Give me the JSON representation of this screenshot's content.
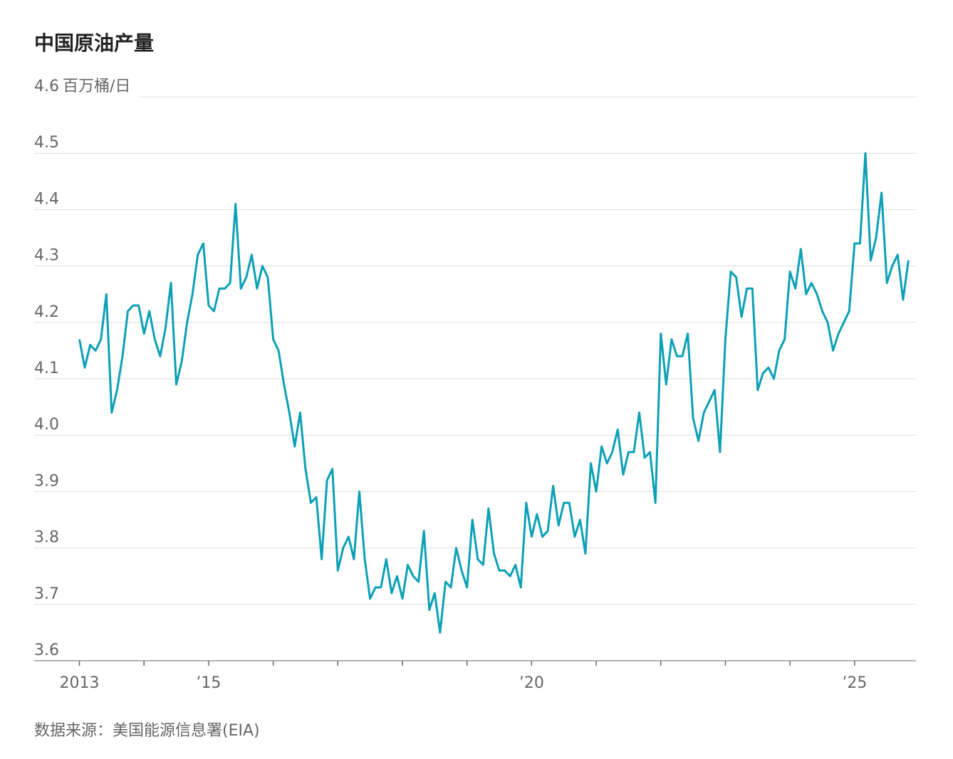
{
  "chart_data": {
    "type": "line",
    "title": "中国原油产量",
    "y_unit": "百万桶/日",
    "source": "数据来源：美国能源信息署(EIA)",
    "color": "#0ba0b6",
    "grid": true,
    "xlim": [
      2012.3,
      2025.95
    ],
    "ylim": [
      3.6,
      4.6
    ],
    "xticks": [
      {
        "value": 2013,
        "label": "2013"
      },
      {
        "value": 2015,
        "label": "’15"
      },
      {
        "value": 2020,
        "label": "’20"
      },
      {
        "value": 2025,
        "label": "’25"
      }
    ],
    "xminorticks": [
      2014,
      2016,
      2017,
      2018,
      2019,
      2021,
      2022,
      2023,
      2024
    ],
    "yticks": [
      3.6,
      3.7,
      3.8,
      3.9,
      {
        "value": 4,
        "label": "4.0"
      },
      4.1,
      4.2,
      4.3,
      4.4,
      4.5,
      4.6
    ],
    "x": [
      2013,
      2013.083,
      2013.167,
      2013.25,
      2013.333,
      2013.417,
      2013.5,
      2013.583,
      2013.667,
      2013.75,
      2013.833,
      2013.917,
      2014,
      2014.083,
      2014.167,
      2014.25,
      2014.333,
      2014.417,
      2014.5,
      2014.583,
      2014.667,
      2014.75,
      2014.833,
      2014.917,
      2015,
      2015.083,
      2015.167,
      2015.25,
      2015.333,
      2015.417,
      2015.5,
      2015.583,
      2015.667,
      2015.75,
      2015.833,
      2015.917,
      2016,
      2016.083,
      2016.167,
      2016.25,
      2016.333,
      2016.417,
      2016.5,
      2016.583,
      2016.667,
      2016.75,
      2016.833,
      2016.917,
      2017,
      2017.083,
      2017.167,
      2017.25,
      2017.333,
      2017.417,
      2017.5,
      2017.583,
      2017.667,
      2017.75,
      2017.833,
      2017.917,
      2018,
      2018.083,
      2018.167,
      2018.25,
      2018.333,
      2018.417,
      2018.5,
      2018.583,
      2018.667,
      2018.75,
      2018.833,
      2018.917,
      2019,
      2019.083,
      2019.167,
      2019.25,
      2019.333,
      2019.417,
      2019.5,
      2019.583,
      2019.667,
      2019.75,
      2019.833,
      2019.917,
      2020,
      2020.083,
      2020.167,
      2020.25,
      2020.333,
      2020.417,
      2020.5,
      2020.583,
      2020.667,
      2020.75,
      2020.833,
      2020.917,
      2021,
      2021.083,
      2021.167,
      2021.25,
      2021.333,
      2021.417,
      2021.5,
      2021.583,
      2021.667,
      2021.75,
      2021.833,
      2021.917,
      2022,
      2022.083,
      2022.167,
      2022.25,
      2022.333,
      2022.417,
      2022.5,
      2022.583,
      2022.667,
      2022.75,
      2022.833,
      2022.917,
      2023,
      2023.083,
      2023.167,
      2023.25,
      2023.333,
      2023.417,
      2023.5,
      2023.583,
      2023.667,
      2023.75,
      2023.833,
      2023.917,
      2024,
      2024.083,
      2024.167,
      2024.25,
      2024.333,
      2024.417,
      2024.5,
      2024.583,
      2024.667,
      2024.75,
      2024.833,
      2024.917,
      2025,
      2025.083,
      2025.167,
      2025.25,
      2025.333,
      2025.417,
      2025.5,
      2025.583,
      2025.667,
      2025.75,
      2025.833
    ],
    "values": [
      4.17,
      4.12,
      4.16,
      4.15,
      4.17,
      4.25,
      4.04,
      4.08,
      4.14,
      4.22,
      4.23,
      4.23,
      4.18,
      4.22,
      4.17,
      4.14,
      4.19,
      4.27,
      4.09,
      4.13,
      4.2,
      4.25,
      4.32,
      4.34,
      4.23,
      4.22,
      4.26,
      4.26,
      4.27,
      4.41,
      4.26,
      4.28,
      4.32,
      4.26,
      4.3,
      4.28,
      4.17,
      4.15,
      4.09,
      4.04,
      3.98,
      4.04,
      3.94,
      3.88,
      3.89,
      3.78,
      3.92,
      3.94,
      3.76,
      3.8,
      3.82,
      3.78,
      3.9,
      3.78,
      3.71,
      3.73,
      3.73,
      3.78,
      3.72,
      3.75,
      3.71,
      3.77,
      3.75,
      3.74,
      3.83,
      3.69,
      3.72,
      3.65,
      3.74,
      3.73,
      3.8,
      3.76,
      3.73,
      3.85,
      3.78,
      3.77,
      3.87,
      3.79,
      3.76,
      3.76,
      3.75,
      3.77,
      3.73,
      3.88,
      3.82,
      3.86,
      3.82,
      3.83,
      3.91,
      3.84,
      3.88,
      3.88,
      3.82,
      3.85,
      3.79,
      3.95,
      3.9,
      3.98,
      3.95,
      3.97,
      4.01,
      3.93,
      3.97,
      3.97,
      4.04,
      3.96,
      3.97,
      3.88,
      4.18,
      4.09,
      4.17,
      4.14,
      4.14,
      4.18,
      4.03,
      3.99,
      4.04,
      4.06,
      4.08,
      3.97,
      4.17,
      4.29,
      4.28,
      4.21,
      4.26,
      4.26,
      4.08,
      4.11,
      4.12,
      4.1,
      4.15,
      4.17,
      4.29,
      4.26,
      4.33,
      4.25,
      4.27,
      4.25,
      4.22,
      4.2,
      4.15,
      4.18,
      4.2,
      4.22,
      4.34,
      4.34,
      4.5,
      4.31,
      4.35,
      4.43,
      4.27,
      4.3,
      4.32,
      4.24,
      4.31
    ]
  }
}
